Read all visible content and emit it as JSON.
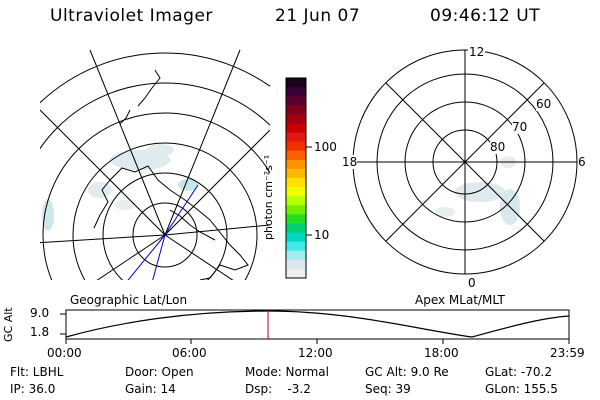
{
  "header": {
    "instrument": "Ultraviolet Imager",
    "date": "21 Jun 07",
    "time": "09:46:12 UT"
  },
  "geo_plot": {
    "title": "Geographic Lat/Lon"
  },
  "apex_plot": {
    "title": "Apex MLat/MLT",
    "mlt_labels": {
      "top": "12",
      "left": "18",
      "right": "6",
      "bottom": "0"
    },
    "lat_labels": [
      "60",
      "70",
      "80"
    ]
  },
  "colorbar": {
    "unit_label": "photon cm⁻²s⁻¹",
    "tick_100": "100",
    "tick_10": "10",
    "colors": [
      "#1a0018",
      "#3a003a",
      "#5a0030",
      "#800020",
      "#a00010",
      "#c80000",
      "#e01818",
      "#f03000",
      "#f86000",
      "#ff9000",
      "#ffb800",
      "#ffe000",
      "#f0ff00",
      "#b8ff00",
      "#70f000",
      "#20e020",
      "#00d070",
      "#00d8c0",
      "#40e8e8",
      "#a0eef0",
      "#dde8ee",
      "#eeeeee"
    ]
  },
  "timeline": {
    "ylabel": "GC Alt",
    "ymax": "9.0",
    "ymin": "1.8",
    "ticks": [
      "00:00",
      "06:00",
      "12:00",
      "18:00",
      "23:59"
    ]
  },
  "status": {
    "flt": "Flt: LBHL",
    "ip": "IP: 36.0",
    "door": "Door: Open",
    "gain": "Gain: 14",
    "mode": "Mode: Normal",
    "dsp": "Dsp:    -3.2",
    "gcalt": "GC Alt: 9.0 Re",
    "seq": "Seq: 39",
    "glat": "GLat: -70.2",
    "glon": "GLon: 155.5"
  },
  "colors": {
    "aurora_faint": "#d8e8ec",
    "aurora_mid": "#b8e0e4",
    "cursor": "#c00000",
    "nadir_line": "#0000c0"
  }
}
